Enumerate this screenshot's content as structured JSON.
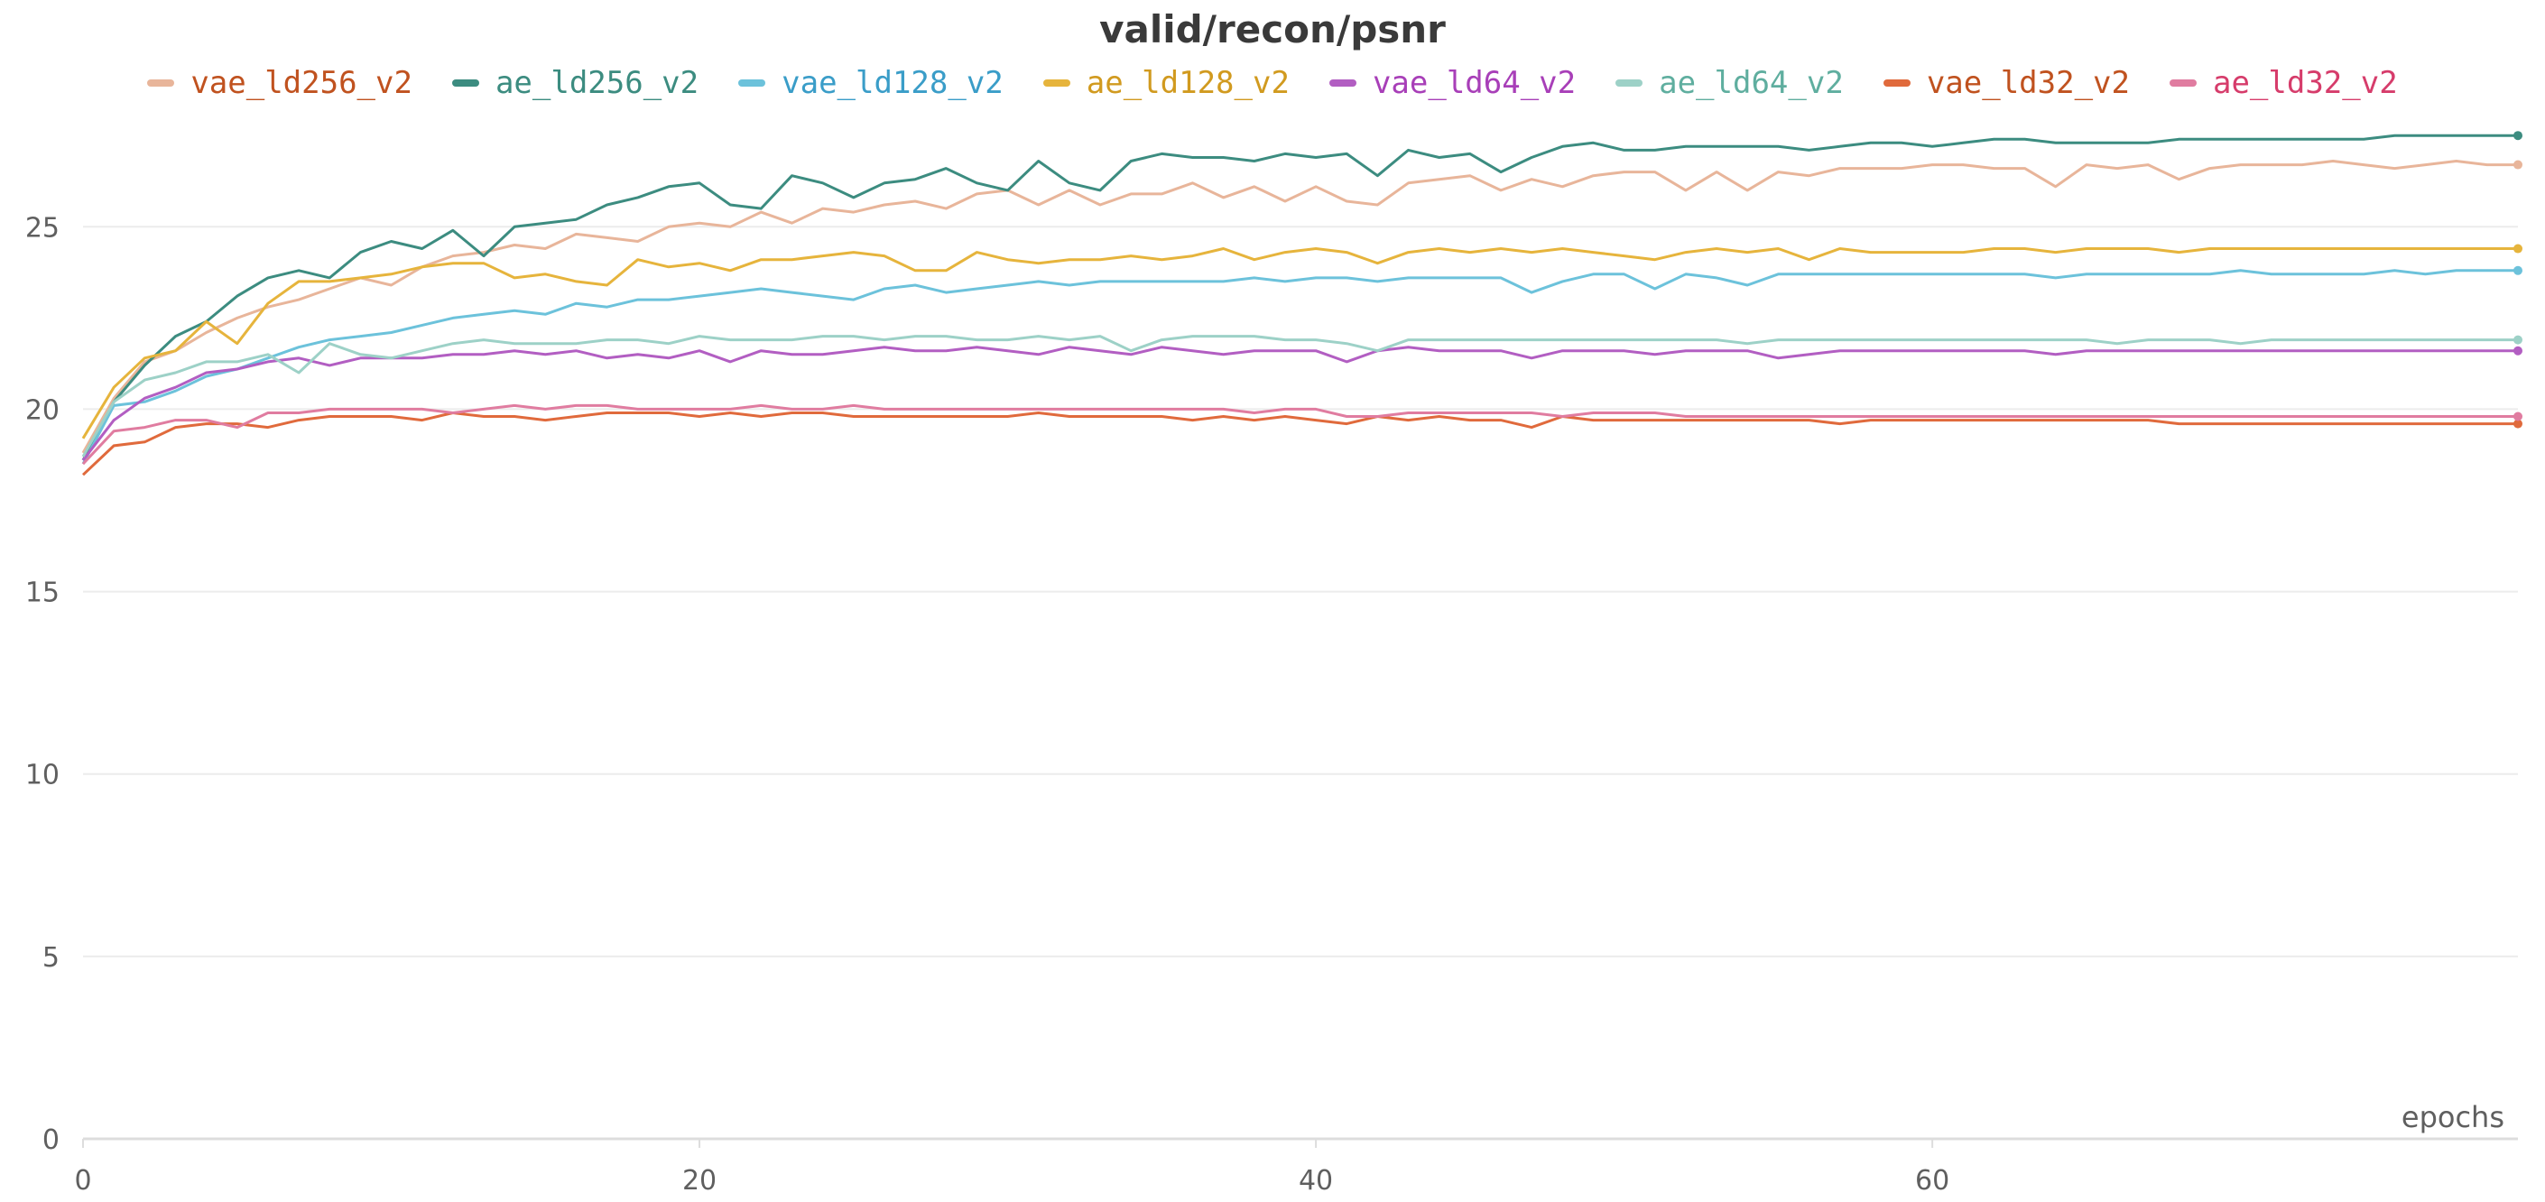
{
  "chart_data": {
    "type": "line",
    "title": "valid/recon/psnr",
    "xlabel": "epochs",
    "ylabel": "",
    "xlim": [
      0,
      79
    ],
    "ylim": [
      0,
      28
    ],
    "xticks": [
      0,
      20,
      40,
      60
    ],
    "yticks": [
      0,
      5,
      10,
      15,
      20,
      25
    ],
    "grid": true,
    "legend_position": "top",
    "x": [
      0,
      1,
      2,
      3,
      4,
      5,
      6,
      7,
      8,
      9,
      10,
      11,
      12,
      13,
      14,
      15,
      16,
      17,
      18,
      19,
      20,
      21,
      22,
      23,
      24,
      25,
      26,
      27,
      28,
      29,
      30,
      31,
      32,
      33,
      34,
      35,
      36,
      37,
      38,
      39,
      40,
      41,
      42,
      43,
      44,
      45,
      46,
      47,
      48,
      49,
      50,
      51,
      52,
      53,
      54,
      55,
      56,
      57,
      58,
      59,
      60,
      61,
      62,
      63,
      64,
      65,
      66,
      67,
      68,
      69,
      70,
      71,
      72,
      73,
      74,
      75,
      76,
      77,
      78,
      79
    ],
    "series": [
      {
        "name": "vae_ld256_v2",
        "color": "#e8b59a",
        "text_color": "#c0521f",
        "values": [
          18.8,
          20.3,
          21.3,
          21.6,
          22.1,
          22.5,
          22.8,
          23.0,
          23.3,
          23.6,
          23.4,
          23.9,
          24.2,
          24.3,
          24.5,
          24.4,
          24.8,
          24.7,
          24.6,
          25.0,
          25.1,
          25.0,
          25.4,
          25.1,
          25.5,
          25.4,
          25.6,
          25.7,
          25.5,
          25.9,
          26.0,
          25.6,
          26.0,
          25.6,
          25.9,
          25.9,
          26.2,
          25.8,
          26.1,
          25.7,
          26.1,
          25.7,
          25.6,
          26.2,
          26.3,
          26.4,
          26.0,
          26.3,
          26.1,
          26.4,
          26.5,
          26.5,
          26.0,
          26.5,
          26.0,
          26.5,
          26.4,
          26.6,
          26.6,
          26.6,
          26.7,
          26.7,
          26.6,
          26.6,
          26.1,
          26.7,
          26.6,
          26.7,
          26.3,
          26.6,
          26.7,
          26.7,
          26.7,
          26.8,
          26.7,
          26.6,
          26.7,
          26.8,
          26.7,
          26.7
        ]
      },
      {
        "name": "ae_ld256_v2",
        "color": "#3c8c80",
        "text_color": "#3c8c80",
        "values": [
          18.6,
          20.2,
          21.2,
          22.0,
          22.4,
          23.1,
          23.6,
          23.8,
          23.6,
          24.3,
          24.6,
          24.4,
          24.9,
          24.2,
          25.0,
          25.1,
          25.2,
          25.6,
          25.8,
          26.1,
          26.2,
          25.6,
          25.5,
          26.4,
          26.2,
          25.8,
          26.2,
          26.3,
          26.6,
          26.2,
          26.0,
          26.8,
          26.2,
          26.0,
          26.8,
          27.0,
          26.9,
          26.9,
          26.8,
          27.0,
          26.9,
          27.0,
          26.4,
          27.1,
          26.9,
          27.0,
          26.5,
          26.9,
          27.2,
          27.3,
          27.1,
          27.1,
          27.2,
          27.2,
          27.2,
          27.2,
          27.1,
          27.2,
          27.3,
          27.3,
          27.2,
          27.3,
          27.4,
          27.4,
          27.3,
          27.3,
          27.3,
          27.3,
          27.4,
          27.4,
          27.4,
          27.4,
          27.4,
          27.4,
          27.4,
          27.5,
          27.5,
          27.5,
          27.5,
          27.5
        ]
      },
      {
        "name": "vae_ld128_v2",
        "color": "#6cc2db",
        "text_color": "#3a9dc8",
        "values": [
          18.5,
          20.1,
          20.2,
          20.5,
          20.9,
          21.1,
          21.4,
          21.7,
          21.9,
          22.0,
          22.1,
          22.3,
          22.5,
          22.6,
          22.7,
          22.6,
          22.9,
          22.8,
          23.0,
          23.0,
          23.1,
          23.2,
          23.3,
          23.2,
          23.1,
          23.0,
          23.3,
          23.4,
          23.2,
          23.3,
          23.4,
          23.5,
          23.4,
          23.5,
          23.5,
          23.5,
          23.5,
          23.5,
          23.6,
          23.5,
          23.6,
          23.6,
          23.5,
          23.6,
          23.6,
          23.6,
          23.6,
          23.2,
          23.5,
          23.7,
          23.7,
          23.3,
          23.7,
          23.6,
          23.4,
          23.7,
          23.7,
          23.7,
          23.7,
          23.7,
          23.7,
          23.7,
          23.7,
          23.7,
          23.6,
          23.7,
          23.7,
          23.7,
          23.7,
          23.7,
          23.8,
          23.7,
          23.7,
          23.7,
          23.7,
          23.8,
          23.7,
          23.8,
          23.8,
          23.8
        ]
      },
      {
        "name": "ae_ld128_v2",
        "color": "#e6b43c",
        "text_color": "#d19a1f",
        "values": [
          19.2,
          20.6,
          21.4,
          21.6,
          22.4,
          21.8,
          22.9,
          23.5,
          23.5,
          23.6,
          23.7,
          23.9,
          24.0,
          24.0,
          23.6,
          23.7,
          23.5,
          23.4,
          24.1,
          23.9,
          24.0,
          23.8,
          24.1,
          24.1,
          24.2,
          24.3,
          24.2,
          23.8,
          23.8,
          24.3,
          24.1,
          24.0,
          24.1,
          24.1,
          24.2,
          24.1,
          24.2,
          24.4,
          24.1,
          24.3,
          24.4,
          24.3,
          24.0,
          24.3,
          24.4,
          24.3,
          24.4,
          24.3,
          24.4,
          24.3,
          24.2,
          24.1,
          24.3,
          24.4,
          24.3,
          24.4,
          24.1,
          24.4,
          24.3,
          24.3,
          24.3,
          24.3,
          24.4,
          24.4,
          24.3,
          24.4,
          24.4,
          24.4,
          24.3,
          24.4,
          24.4,
          24.4,
          24.4,
          24.4,
          24.4,
          24.4,
          24.4,
          24.4,
          24.4,
          24.4
        ]
      },
      {
        "name": "vae_ld64_v2",
        "color": "#b25ec2",
        "text_color": "#a83fb8",
        "values": [
          18.6,
          19.7,
          20.3,
          20.6,
          21.0,
          21.1,
          21.3,
          21.4,
          21.2,
          21.4,
          21.4,
          21.4,
          21.5,
          21.5,
          21.6,
          21.5,
          21.6,
          21.4,
          21.5,
          21.4,
          21.6,
          21.3,
          21.6,
          21.5,
          21.5,
          21.6,
          21.7,
          21.6,
          21.6,
          21.7,
          21.6,
          21.5,
          21.7,
          21.6,
          21.5,
          21.7,
          21.6,
          21.5,
          21.6,
          21.6,
          21.6,
          21.3,
          21.6,
          21.7,
          21.6,
          21.6,
          21.6,
          21.4,
          21.6,
          21.6,
          21.6,
          21.5,
          21.6,
          21.6,
          21.6,
          21.4,
          21.5,
          21.6,
          21.6,
          21.6,
          21.6,
          21.6,
          21.6,
          21.6,
          21.5,
          21.6,
          21.6,
          21.6,
          21.6,
          21.6,
          21.6,
          21.6,
          21.6,
          21.6,
          21.6,
          21.6,
          21.6,
          21.6,
          21.6,
          21.6
        ]
      },
      {
        "name": "ae_ld64_v2",
        "color": "#9dd1c7",
        "text_color": "#5fae9f",
        "values": [
          18.7,
          20.2,
          20.8,
          21.0,
          21.3,
          21.3,
          21.5,
          21.0,
          21.8,
          21.5,
          21.4,
          21.6,
          21.8,
          21.9,
          21.8,
          21.8,
          21.8,
          21.9,
          21.9,
          21.8,
          22.0,
          21.9,
          21.9,
          21.9,
          22.0,
          22.0,
          21.9,
          22.0,
          22.0,
          21.9,
          21.9,
          22.0,
          21.9,
          22.0,
          21.6,
          21.9,
          22.0,
          22.0,
          22.0,
          21.9,
          21.9,
          21.8,
          21.6,
          21.9,
          21.9,
          21.9,
          21.9,
          21.9,
          21.9,
          21.9,
          21.9,
          21.9,
          21.9,
          21.9,
          21.8,
          21.9,
          21.9,
          21.9,
          21.9,
          21.9,
          21.9,
          21.9,
          21.9,
          21.9,
          21.9,
          21.9,
          21.8,
          21.9,
          21.9,
          21.9,
          21.8,
          21.9,
          21.9,
          21.9,
          21.9,
          21.9,
          21.9,
          21.9,
          21.9,
          21.9
        ]
      },
      {
        "name": "vae_ld32_v2",
        "color": "#e06a3c",
        "text_color": "#c0521f",
        "values": [
          18.2,
          19.0,
          19.1,
          19.5,
          19.6,
          19.6,
          19.5,
          19.7,
          19.8,
          19.8,
          19.8,
          19.7,
          19.9,
          19.8,
          19.8,
          19.7,
          19.8,
          19.9,
          19.9,
          19.9,
          19.8,
          19.9,
          19.8,
          19.9,
          19.9,
          19.8,
          19.8,
          19.8,
          19.8,
          19.8,
          19.8,
          19.9,
          19.8,
          19.8,
          19.8,
          19.8,
          19.7,
          19.8,
          19.7,
          19.8,
          19.7,
          19.6,
          19.8,
          19.7,
          19.8,
          19.7,
          19.7,
          19.5,
          19.8,
          19.7,
          19.7,
          19.7,
          19.7,
          19.7,
          19.7,
          19.7,
          19.7,
          19.6,
          19.7,
          19.7,
          19.7,
          19.7,
          19.7,
          19.7,
          19.7,
          19.7,
          19.7,
          19.7,
          19.6,
          19.6,
          19.6,
          19.6,
          19.6,
          19.6,
          19.6,
          19.6,
          19.6,
          19.6,
          19.6,
          19.6
        ]
      },
      {
        "name": "ae_ld32_v2",
        "color": "#e07ca0",
        "text_color": "#d63c6b",
        "values": [
          18.5,
          19.4,
          19.5,
          19.7,
          19.7,
          19.5,
          19.9,
          19.9,
          20.0,
          20.0,
          20.0,
          20.0,
          19.9,
          20.0,
          20.1,
          20.0,
          20.1,
          20.1,
          20.0,
          20.0,
          20.0,
          20.0,
          20.1,
          20.0,
          20.0,
          20.1,
          20.0,
          20.0,
          20.0,
          20.0,
          20.0,
          20.0,
          20.0,
          20.0,
          20.0,
          20.0,
          20.0,
          20.0,
          19.9,
          20.0,
          20.0,
          19.8,
          19.8,
          19.9,
          19.9,
          19.9,
          19.9,
          19.9,
          19.8,
          19.9,
          19.9,
          19.9,
          19.8,
          19.8,
          19.8,
          19.8,
          19.8,
          19.8,
          19.8,
          19.8,
          19.8,
          19.8,
          19.8,
          19.8,
          19.8,
          19.8,
          19.8,
          19.8,
          19.8,
          19.8,
          19.8,
          19.8,
          19.8,
          19.8,
          19.8,
          19.8,
          19.8,
          19.8,
          19.8,
          19.8
        ]
      }
    ]
  }
}
